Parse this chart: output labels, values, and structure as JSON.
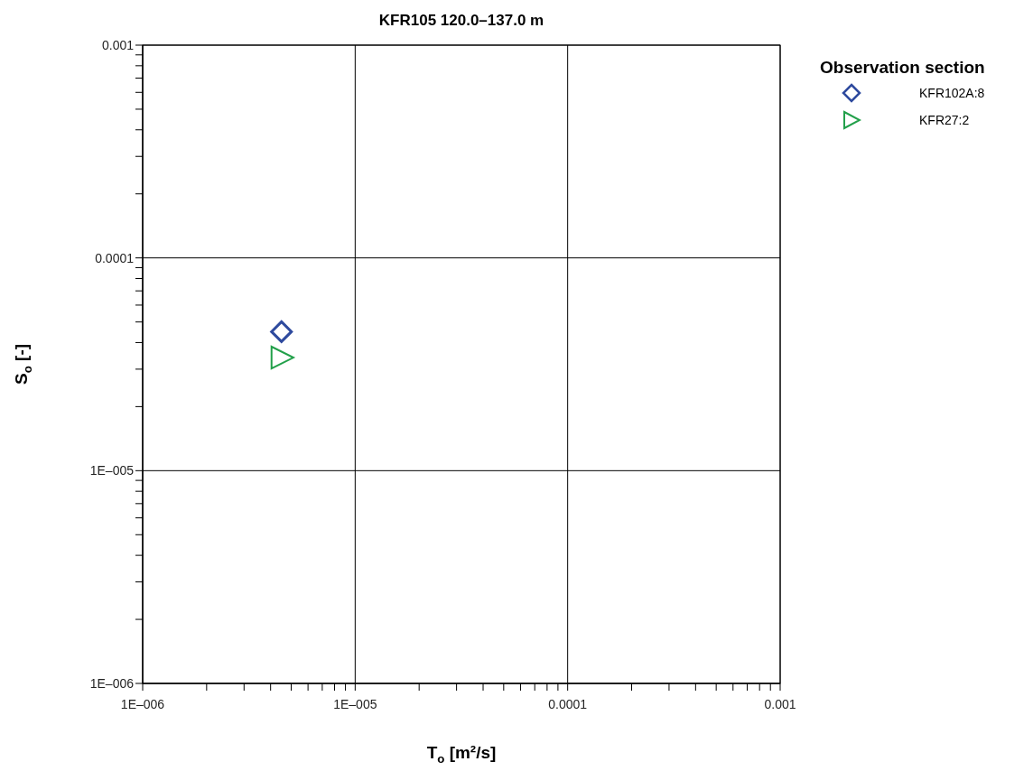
{
  "chart_data": {
    "type": "scatter",
    "title": "KFR105 120.0–137.0 m",
    "xlabel": "T$_{o}$ [m²/s]",
    "ylabel": "S$_{o}$ [-]",
    "legend_title": "Observation section",
    "legend": "top right",
    "log": "xy",
    "grid": true,
    "xlim": [
      1e-06,
      0.001
    ],
    "ylim": [
      1e-06,
      0.001
    ],
    "xticks": [
      {
        "value": 1e-06,
        "label": "1E–006"
      },
      {
        "value": 2e-06,
        "label": null
      },
      {
        "value": 3e-06,
        "label": null
      },
      {
        "value": 4e-06,
        "label": null
      },
      {
        "value": 5e-06,
        "label": null
      },
      {
        "value": 6e-06,
        "label": null
      },
      {
        "value": 7e-06,
        "label": null
      },
      {
        "value": 8e-06,
        "label": null
      },
      {
        "value": 9e-06,
        "label": null
      },
      {
        "value": 1e-05,
        "label": "1E–005"
      },
      {
        "value": 2e-05,
        "label": null
      },
      {
        "value": 3e-05,
        "label": null
      },
      {
        "value": 4e-05,
        "label": null
      },
      {
        "value": 5e-05,
        "label": null
      },
      {
        "value": 6e-05,
        "label": null
      },
      {
        "value": 7e-05,
        "label": null
      },
      {
        "value": 8e-05,
        "label": null
      },
      {
        "value": 9e-05,
        "label": null
      },
      {
        "value": 0.0001,
        "label": "0.0001"
      },
      {
        "value": 0.0002,
        "label": null
      },
      {
        "value": 0.0003,
        "label": null
      },
      {
        "value": 0.0004,
        "label": null
      },
      {
        "value": 0.0005,
        "label": null
      },
      {
        "value": 0.0006,
        "label": null
      },
      {
        "value": 0.0007,
        "label": null
      },
      {
        "value": 0.0008,
        "label": null
      },
      {
        "value": 0.0009,
        "label": null
      },
      {
        "value": 0.001,
        "label": "0.001"
      }
    ],
    "yticks": [
      {
        "value": 1e-06,
        "label": "1E–006"
      },
      {
        "value": 2e-06,
        "label": null
      },
      {
        "value": 3e-06,
        "label": null
      },
      {
        "value": 4e-06,
        "label": null
      },
      {
        "value": 5e-06,
        "label": null
      },
      {
        "value": 6e-06,
        "label": null
      },
      {
        "value": 7e-06,
        "label": null
      },
      {
        "value": 8e-06,
        "label": null
      },
      {
        "value": 9e-06,
        "label": null
      },
      {
        "value": 1e-05,
        "label": "1E–005"
      },
      {
        "value": 2e-05,
        "label": null
      },
      {
        "value": 3e-05,
        "label": null
      },
      {
        "value": 4e-05,
        "label": null
      },
      {
        "value": 5e-05,
        "label": null
      },
      {
        "value": 6e-05,
        "label": null
      },
      {
        "value": 7e-05,
        "label": null
      },
      {
        "value": 8e-05,
        "label": null
      },
      {
        "value": 9e-05,
        "label": null
      },
      {
        "value": 0.0001,
        "label": "0.0001"
      },
      {
        "value": 0.0002,
        "label": null
      },
      {
        "value": 0.0003,
        "label": null
      },
      {
        "value": 0.0004,
        "label": null
      },
      {
        "value": 0.0005,
        "label": null
      },
      {
        "value": 0.0006,
        "label": null
      },
      {
        "value": 0.0007,
        "label": null
      },
      {
        "value": 0.0008,
        "label": null
      },
      {
        "value": 0.0009,
        "label": null
      },
      {
        "value": 0.001,
        "label": "0.001"
      }
    ],
    "series": [
      {
        "name": "KFR102A:8",
        "color": "#2e4a9e",
        "marker": "diamond",
        "x": [
          4.5e-06
        ],
        "values": [
          4.5e-05
        ]
      },
      {
        "name": "KFR27:2",
        "color": "#22a04a",
        "marker": "triangle",
        "x": [
          4.5e-06
        ],
        "values": [
          3.4e-05
        ]
      }
    ]
  }
}
